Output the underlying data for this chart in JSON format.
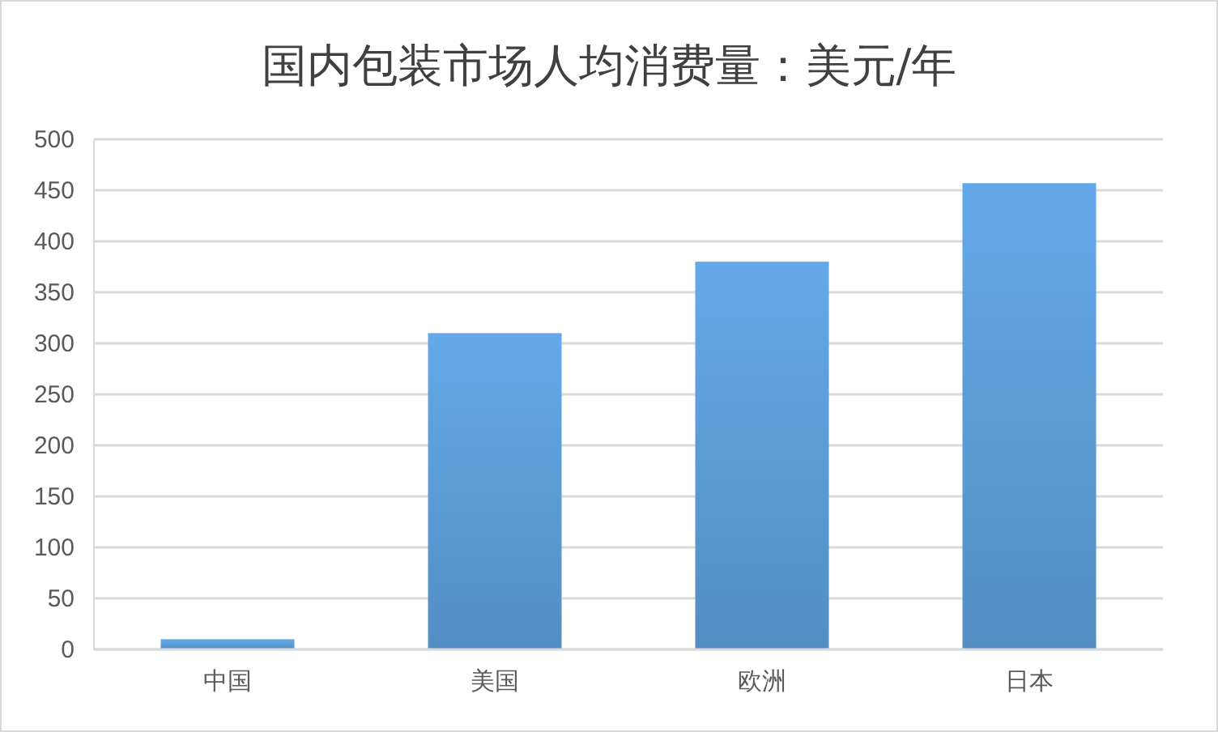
{
  "chart_data": {
    "type": "bar",
    "title": "国内包装市场人均消费量：美元/年",
    "categories": [
      "中国",
      "美国",
      "欧洲",
      "日本"
    ],
    "values": [
      10,
      310,
      380,
      457
    ],
    "color": "#5b9bd5",
    "ylim": [
      0,
      500
    ],
    "yticks": [
      0,
      50,
      100,
      150,
      200,
      250,
      300,
      350,
      400,
      450,
      500
    ],
    "grid": "y"
  }
}
